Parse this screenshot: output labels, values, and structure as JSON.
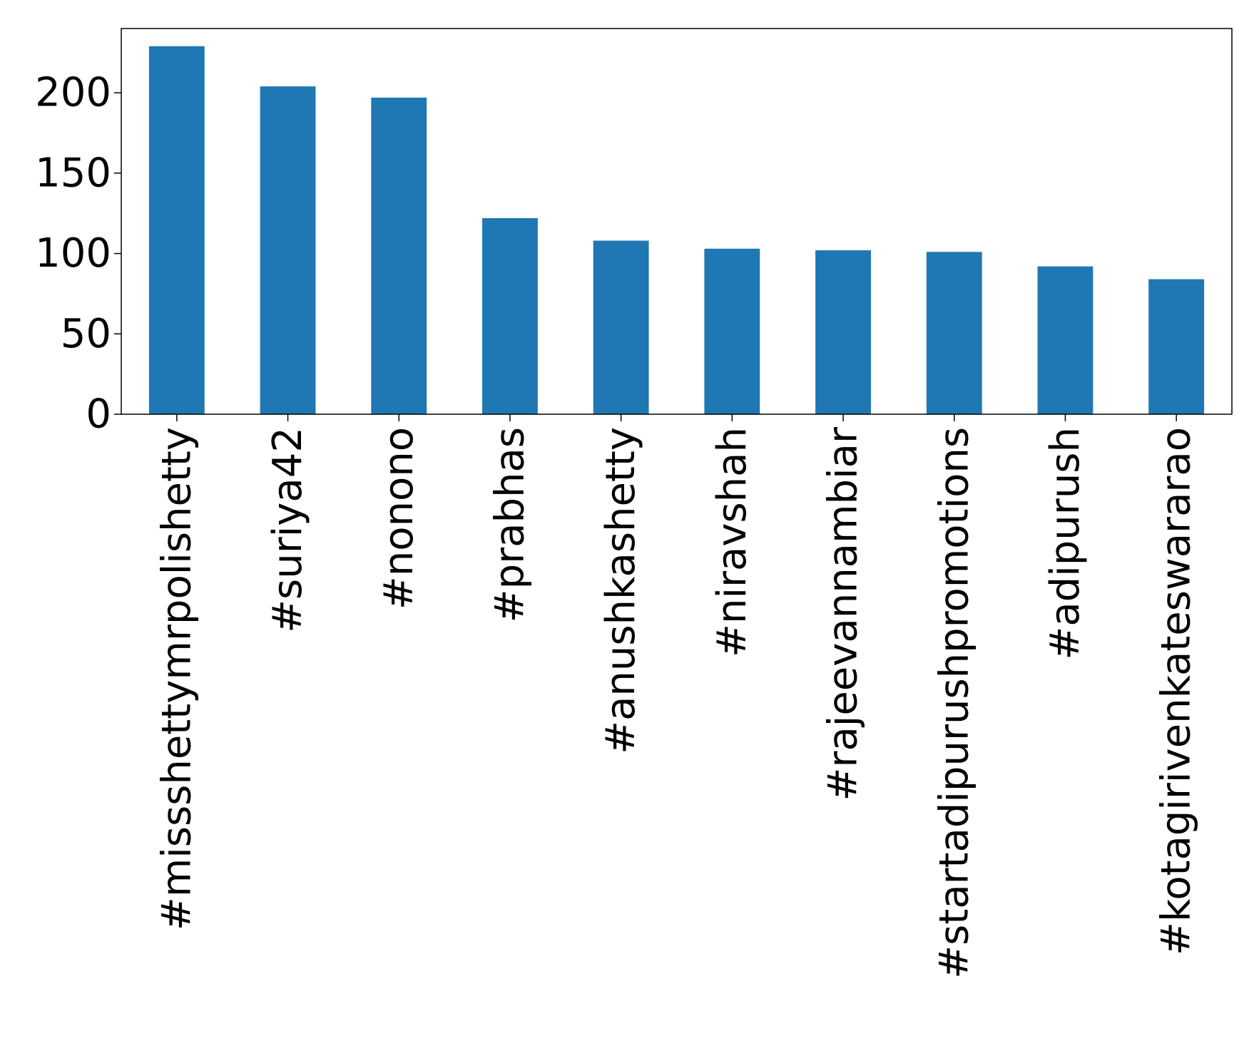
{
  "chart_data": {
    "type": "bar",
    "title": "",
    "xlabel": "",
    "ylabel": "",
    "categories": [
      "#missshettymrpolishetty",
      "#suriya42",
      "#nonono",
      "#prabhas",
      "#anushkashetty",
      "#niravshah",
      "#rajeevannambiar",
      "#startadipurushpromotions",
      "#adipurush",
      "#kotagirivenkateswararao"
    ],
    "values": [
      229,
      204,
      197,
      122,
      108,
      103,
      102,
      101,
      92,
      84
    ],
    "ylim": [
      0,
      240
    ],
    "yticks": [
      0,
      50,
      100,
      150,
      200
    ],
    "ytick_labels": [
      "0",
      "50",
      "100",
      "150",
      "200"
    ],
    "bar_color": "#1f77b4",
    "grid": false,
    "legend": "none"
  }
}
